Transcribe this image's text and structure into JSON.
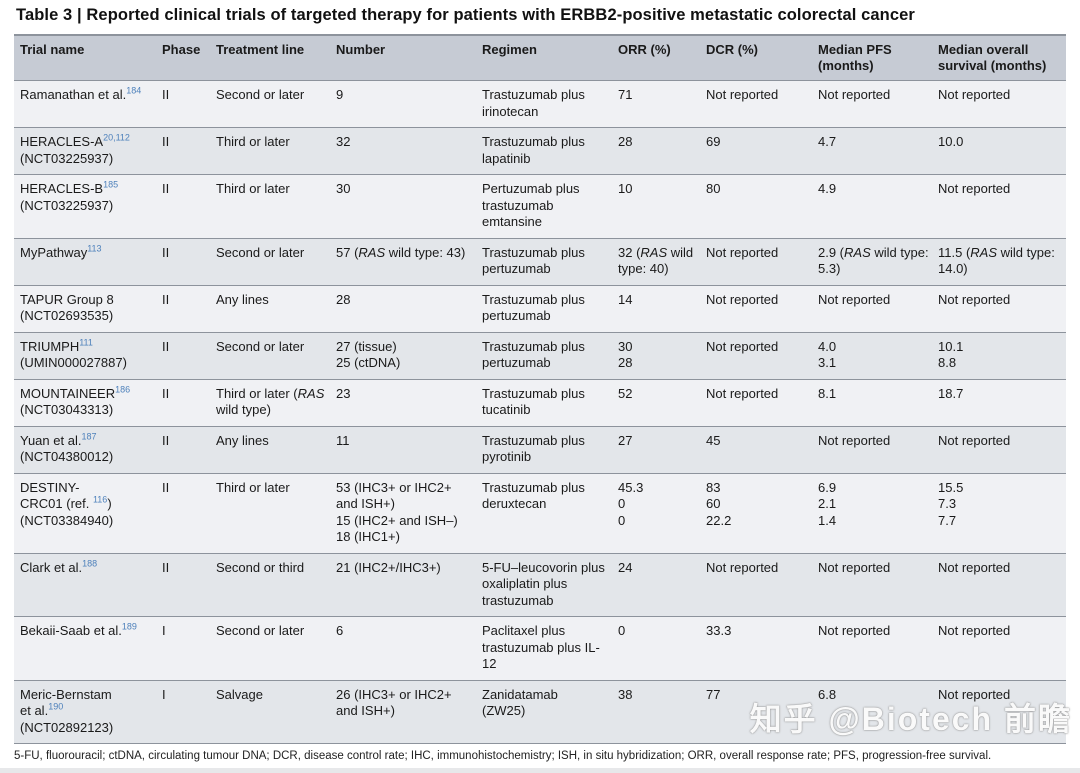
{
  "page": {
    "title": "Table 3 | Reported clinical trials of targeted therapy for patients with ERBB2-positive metastatic colorectal cancer",
    "footnote": "5-FU, fluorouracil; ctDNA, circulating tumour DNA; DCR, disease control rate; IHC, immunohistochemistry; ISH, in situ hybridization; ORR, overall response rate; PFS, progression-free survival.",
    "watermark": "知乎 @Biotech 前瞻"
  },
  "colors": {
    "header_bg": "#c6cbd4",
    "row_light": "#f0f1f4",
    "row_dark": "#e3e6ea",
    "rule": "#8d939c",
    "text": "#1a1a1a",
    "sup_blue": "#4e81bb",
    "page_bg": "#ffffff"
  },
  "italic_terms": [
    "RAS"
  ],
  "table": {
    "columns": [
      "Trial name",
      "Phase",
      "Treatment line",
      "Number",
      "Regimen",
      "ORR (%)",
      "DCR (%)",
      "Median PFS (months)",
      "Median overall survival (months)"
    ],
    "rows": [
      {
        "trial_pre": "Ramanathan et al.",
        "trial_sup": "184",
        "trial_post": "",
        "phase": "II",
        "line": "Second or later",
        "number": "9",
        "regimen": "Trastuzumab plus irinotecan",
        "orr": "71",
        "dcr": "Not reported",
        "pfs": "Not reported",
        "os": "Not reported"
      },
      {
        "trial_pre": "HERACLES-A",
        "trial_sup": "20,112",
        "trial_post": "\n(NCT03225937)",
        "phase": "II",
        "line": "Third or later",
        "number": "32",
        "regimen": "Trastuzumab plus lapatinib",
        "orr": "28",
        "dcr": "69",
        "pfs": "4.7",
        "os": "10.0"
      },
      {
        "trial_pre": "HERACLES-B",
        "trial_sup": "185",
        "trial_post": "\n(NCT03225937)",
        "phase": "II",
        "line": "Third or later",
        "number": "30",
        "regimen": "Pertuzumab plus trastuzumab emtansine",
        "orr": "10",
        "dcr": "80",
        "pfs": "4.9",
        "os": "Not reported"
      },
      {
        "trial_pre": "MyPathway",
        "trial_sup": "113",
        "trial_post": "",
        "phase": "II",
        "line": "Second or later",
        "number": "57 (RAS wild type: 43)",
        "regimen": "Trastuzumab plus pertuzumab",
        "orr": "32 (RAS wild type: 40)",
        "dcr": "Not reported",
        "pfs": "2.9 (RAS wild type: 5.3)",
        "os": "11.5 (RAS wild type: 14.0)"
      },
      {
        "trial_pre": "TAPUR Group 8\n(NCT02693535)",
        "trial_sup": "",
        "trial_post": "",
        "phase": "II",
        "line": "Any lines",
        "number": "28",
        "regimen": "Trastuzumab plus pertuzumab",
        "orr": "14",
        "dcr": "Not reported",
        "pfs": "Not reported",
        "os": "Not reported"
      },
      {
        "trial_pre": "TRIUMPH",
        "trial_sup": "111",
        "trial_post": "\n(UMIN000027887)",
        "phase": "II",
        "line": "Second or later",
        "number": "27 (tissue)\n25 (ctDNA)",
        "regimen": "Trastuzumab plus pertuzumab",
        "orr": "30\n28",
        "dcr": "Not reported",
        "pfs": "4.0\n3.1",
        "os": "10.1\n8.8"
      },
      {
        "trial_pre": "MOUNTAINEER",
        "trial_sup": "186",
        "trial_post": "\n(NCT03043313)",
        "phase": "II",
        "line": "Third or later (RAS wild type)",
        "number": "23",
        "regimen": "Trastuzumab plus tucatinib",
        "orr": "52",
        "dcr": "Not reported",
        "pfs": "8.1",
        "os": "18.7"
      },
      {
        "trial_pre": "Yuan et al.",
        "trial_sup": "187",
        "trial_post": "\n(NCT04380012)",
        "phase": "II",
        "line": "Any lines",
        "number": "11",
        "regimen": "Trastuzumab plus pyrotinib",
        "orr": "27",
        "dcr": "45",
        "pfs": "Not reported",
        "os": "Not reported"
      },
      {
        "trial_pre": "DESTINY-\nCRC01 (ref. ",
        "trial_sup": "116",
        "trial_post": ")\n(NCT03384940)",
        "phase": "II",
        "line": "Third or later",
        "number": "53 (IHC3+ or IHC2+ and ISH+)\n15 (IHC2+ and ISH–)\n18 (IHC1+)",
        "regimen": "Trastuzumab plus deruxtecan",
        "orr": "45.3\n0\n0",
        "dcr": "83\n60\n22.2",
        "pfs": "6.9\n2.1\n1.4",
        "os": "15.5\n7.3\n7.7"
      },
      {
        "trial_pre": "Clark et al.",
        "trial_sup": "188",
        "trial_post": "",
        "phase": "II",
        "line": "Second or third",
        "number": "21 (IHC2+/IHC3+)",
        "regimen": "5-FU–leucovorin plus oxaliplatin plus trastuzumab",
        "orr": "24",
        "dcr": "Not reported",
        "pfs": "Not reported",
        "os": "Not reported"
      },
      {
        "trial_pre": "Bekaii-Saab et al.",
        "trial_sup": "189",
        "trial_post": "",
        "phase": "I",
        "line": "Second or later",
        "number": "6",
        "regimen": "Paclitaxel plus trastuzumab plus IL-12",
        "orr": "0",
        "dcr": "33.3",
        "pfs": "Not reported",
        "os": "Not reported"
      },
      {
        "trial_pre": "Meric-Bernstam\net al.",
        "trial_sup": "190",
        "trial_post": "\n(NCT02892123)",
        "phase": "I",
        "line": "Salvage",
        "number": "26 (IHC3+ or IHC2+ and ISH+)",
        "regimen": "Zanidatamab\n(ZW25)",
        "orr": "38",
        "dcr": "77",
        "pfs": "6.8",
        "os": "Not reported"
      }
    ]
  }
}
